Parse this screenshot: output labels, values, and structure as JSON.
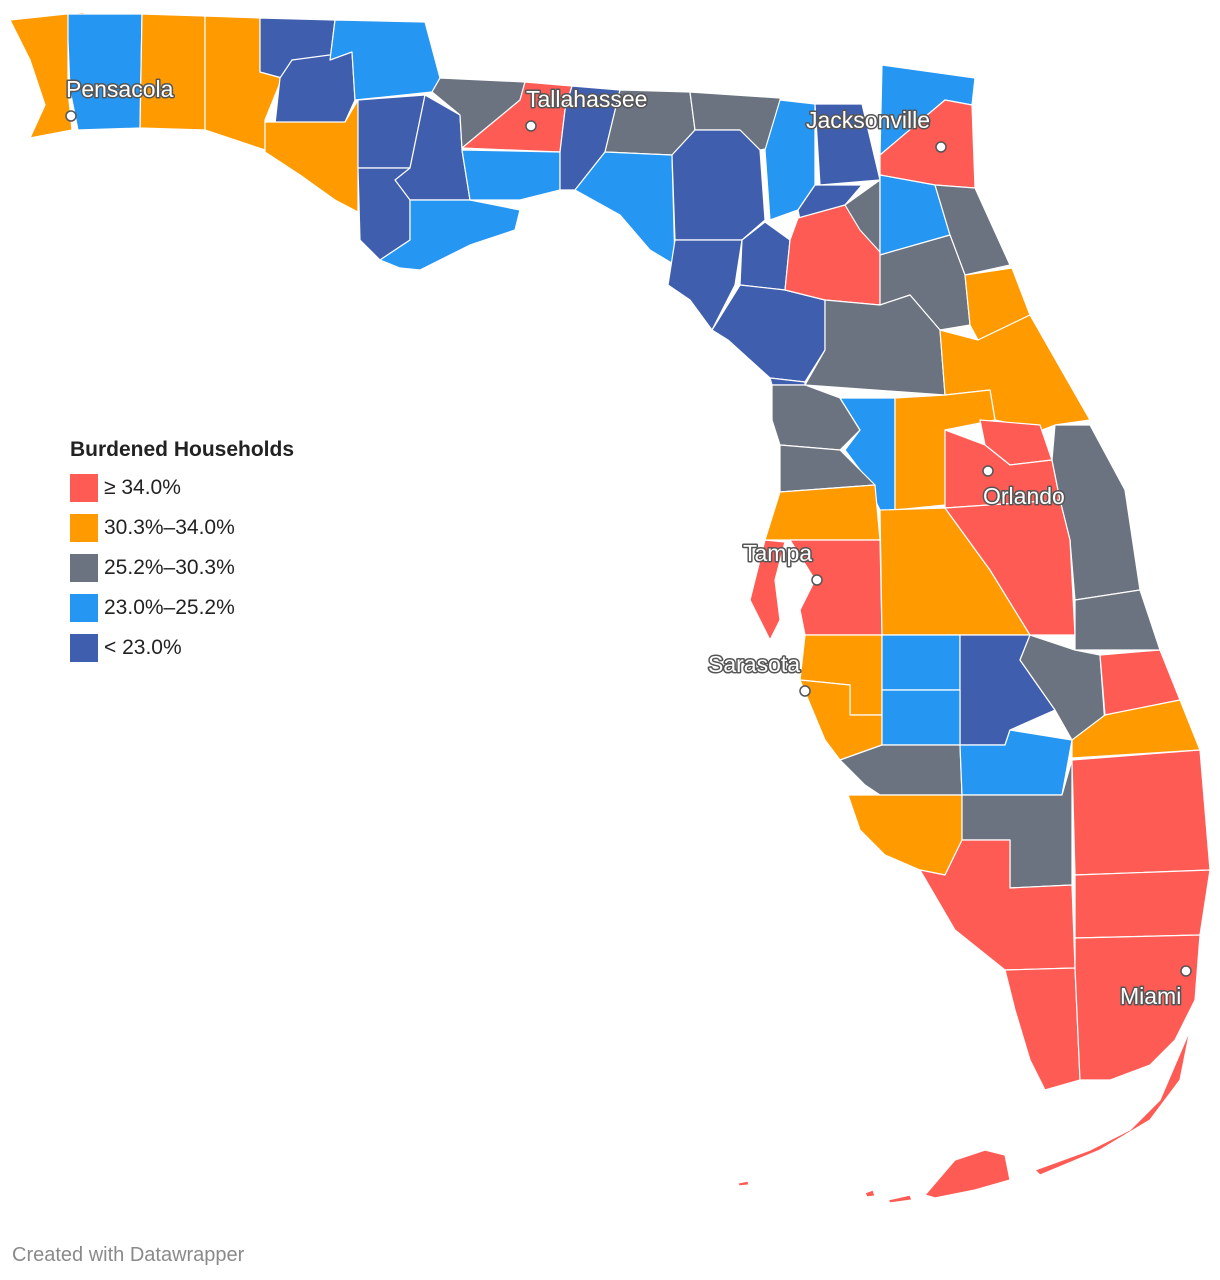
{
  "legend": {
    "title": "Burdened Households",
    "items": [
      {
        "label": "≥ 34.0%",
        "color": "#ff5b55"
      },
      {
        "label": "30.3%–34.0%",
        "color": "#ff9a00"
      },
      {
        "label": "25.2%–30.3%",
        "color": "#6b7280"
      },
      {
        "label": "23.0%–25.2%",
        "color": "#2596f2"
      },
      {
        "label": "< 23.0%",
        "color": "#3f5ead"
      }
    ]
  },
  "cities": {
    "pensacola": "Pensacola",
    "tallahassee": "Tallahassee",
    "jacksonville": "Jacksonville",
    "orlando": "Orlando",
    "tampa": "Tampa",
    "sarasota": "Sarasota",
    "miami": "Miami"
  },
  "footer": "Created with Datawrapper"
}
